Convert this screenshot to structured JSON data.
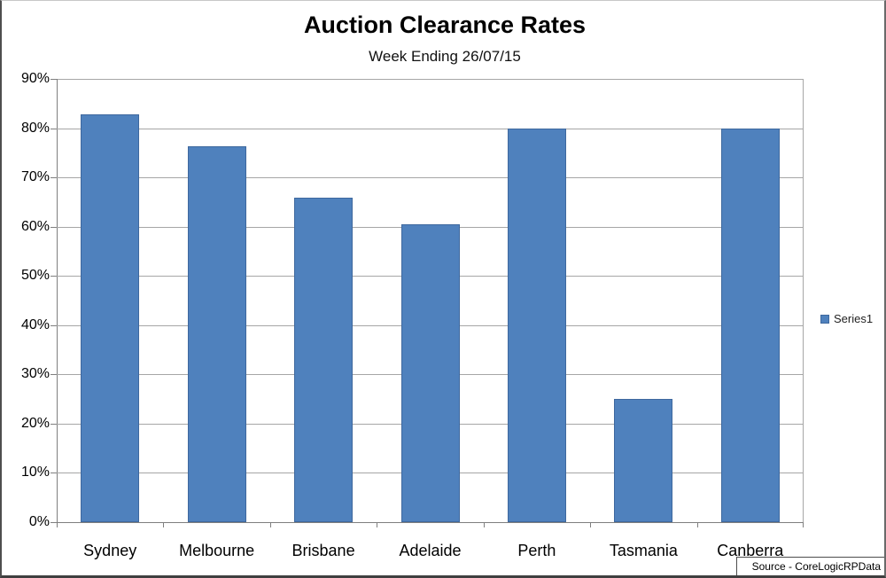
{
  "title": "Auction Clearance Rates",
  "subtitle": "Week Ending 26/07/15",
  "source_text": "Source - CoreLogicRPData",
  "legend": {
    "label": "Series1"
  },
  "colors": {
    "bar_fill": "#4F81BD",
    "bar_border": "#3E689E",
    "gridline": "#A6A6A6",
    "axis": "#7F7F7F"
  },
  "chart_data": {
    "type": "bar",
    "title": "Auction Clearance Rates",
    "subtitle": "Week Ending 26/07/15",
    "categories": [
      "Sydney",
      "Melbourne",
      "Brisbane",
      "Adelaide",
      "Perth",
      "Tasmania",
      "Canberra"
    ],
    "values": [
      82.8,
      76.4,
      65.9,
      60.5,
      80.0,
      25.0,
      80.0
    ],
    "unit": "%",
    "xlabel": "",
    "ylabel": "",
    "ylim": [
      0,
      90
    ],
    "ytick_step": 10,
    "ytick_labels": [
      "0%",
      "10%",
      "20%",
      "30%",
      "40%",
      "50%",
      "60%",
      "70%",
      "80%",
      "90%"
    ],
    "grid": true,
    "legend_entries": [
      "Series1"
    ],
    "legend_position": "right",
    "source": "Source - CoreLogicRPData"
  }
}
